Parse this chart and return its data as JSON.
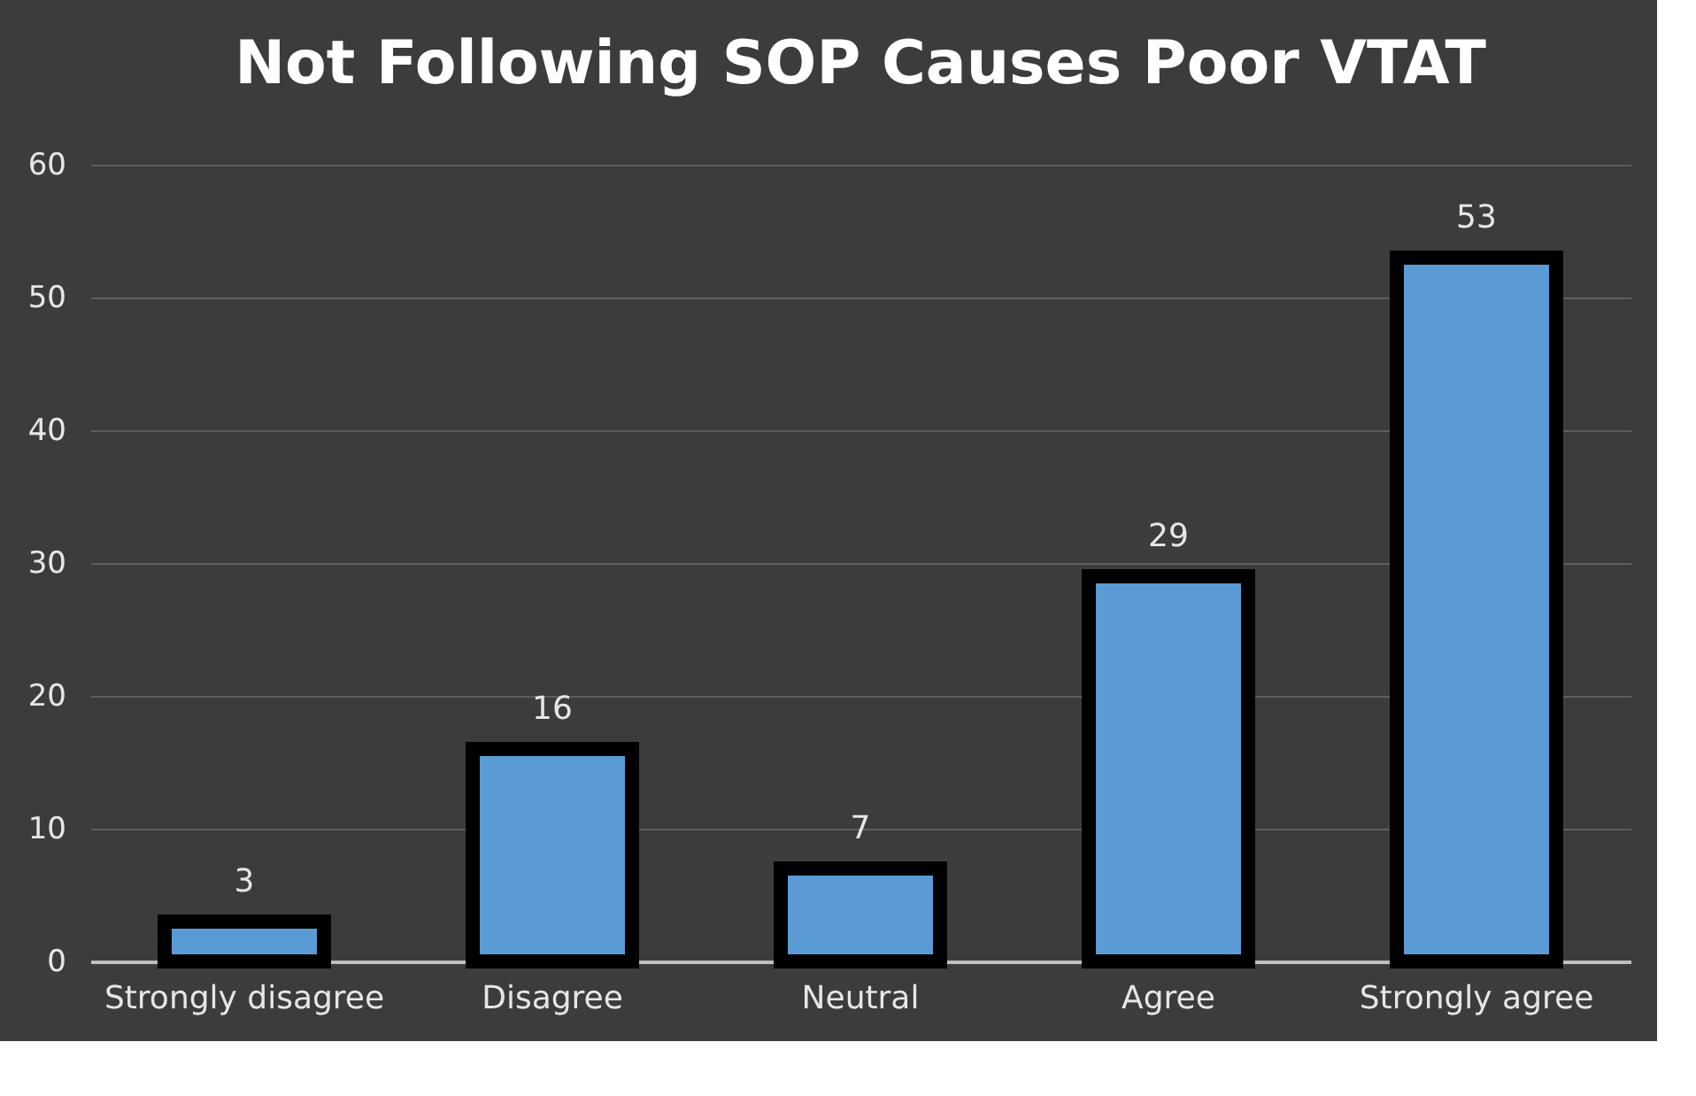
{
  "chart_data": {
    "type": "bar",
    "title": "Not Following SOP Causes Poor VTAT",
    "categories": [
      "Strongly disagree",
      "Disagree",
      "Neutral",
      "Agree",
      "Strongly agree"
    ],
    "values": [
      3,
      16,
      7,
      29,
      53
    ],
    "color": "#5b9bd5",
    "ylim": [
      0,
      60
    ],
    "yticks": [
      0,
      10,
      20,
      30,
      40,
      50,
      60
    ],
    "grid": "y",
    "data_labels": true
  }
}
